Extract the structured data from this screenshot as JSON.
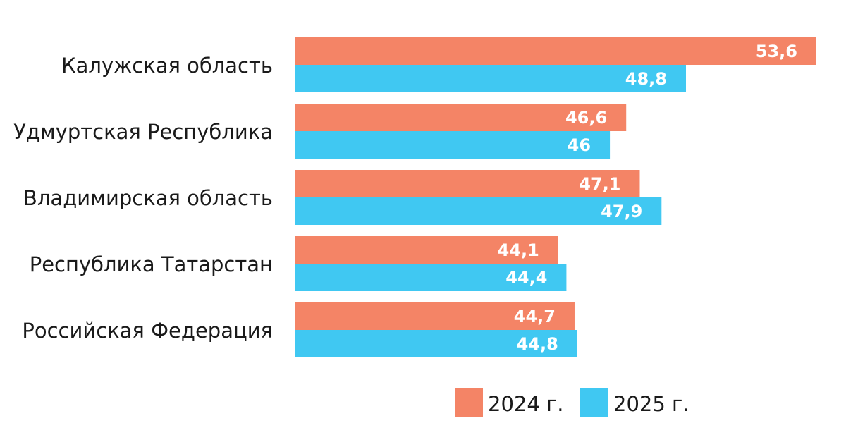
{
  "chart_data": {
    "type": "bar",
    "orientation": "horizontal",
    "title": "",
    "xlabel": "",
    "ylabel": "",
    "categories": [
      "Калужская область",
      "Удмуртская Республика",
      "Владимирская область",
      "Республика Татарстан",
      "Российская Федерация"
    ],
    "series": [
      {
        "name": "2024 г.",
        "color": "#F48466",
        "values": [
          53.6,
          46.6,
          47.1,
          44.1,
          44.7
        ],
        "labels": [
          "53,6",
          "46,6",
          "47,1",
          "44,1",
          "44,7"
        ]
      },
      {
        "name": "2025 г.",
        "color": "#40C8F2",
        "values": [
          48.8,
          46,
          47.9,
          44.4,
          44.8
        ],
        "labels": [
          "48,8",
          "46",
          "47,9",
          "44,4",
          "44,8"
        ]
      }
    ],
    "xlim": [
      34.4,
      53.6
    ],
    "grid": false,
    "legend": "bottom-right"
  }
}
